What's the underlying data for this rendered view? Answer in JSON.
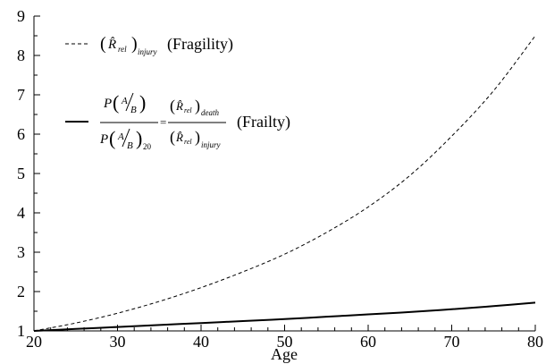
{
  "chart_data": {
    "type": "line",
    "xlabel": "Age",
    "ylabel": "",
    "xlim": [
      20,
      80
    ],
    "ylim": [
      1,
      9
    ],
    "x_ticks": [
      "20",
      "30",
      "40",
      "50",
      "60",
      "70",
      "80"
    ],
    "y_ticks": [
      "1",
      "2",
      "3",
      "4",
      "5",
      "6",
      "7",
      "8",
      "9"
    ],
    "grid": false,
    "legend_position": "top-left",
    "series": [
      {
        "name": "(Fragility)",
        "formula_label": "(R̂rel)injury",
        "style": "dashed",
        "color": "#000000",
        "x": [
          20,
          25,
          30,
          35,
          40,
          45,
          50,
          55,
          60,
          65,
          70,
          75,
          80
        ],
        "y": [
          1.0,
          1.2,
          1.45,
          1.75,
          2.1,
          2.5,
          2.95,
          3.5,
          4.15,
          4.95,
          5.95,
          7.1,
          8.5
        ]
      },
      {
        "name": "(Frailty)",
        "formula_label": "P(A/B) / P(A/B)20 = (R̂rel)death / (R̂rel)injury",
        "style": "solid",
        "color": "#000000",
        "x": [
          20,
          25,
          30,
          35,
          40,
          45,
          50,
          55,
          60,
          65,
          70,
          75,
          80
        ],
        "y": [
          1.0,
          1.05,
          1.1,
          1.15,
          1.2,
          1.25,
          1.3,
          1.36,
          1.42,
          1.48,
          1.55,
          1.63,
          1.72
        ]
      }
    ]
  },
  "legend": {
    "fragility_text": "(Fragility)",
    "frailty_text": "(Frailty)",
    "r_hat": "R̂",
    "sub_rel": "rel",
    "sub_injury": "injury",
    "sub_death": "death",
    "sub_20": "20",
    "p_letter": "P",
    "a_letter": "A",
    "b_letter": "B",
    "equals": "="
  }
}
